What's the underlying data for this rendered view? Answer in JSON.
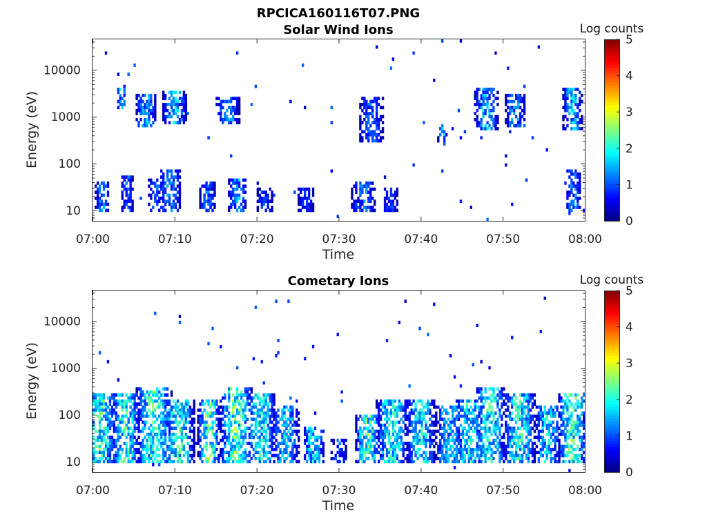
{
  "page": {
    "title": "RPCICA160116T07.PNG"
  },
  "chart_data": [
    {
      "type": "heatmap",
      "title": "Solar Wind Ions",
      "xlabel": "Time",
      "ylabel": "Energy (eV)",
      "x_range": [
        "07:00",
        "08:00"
      ],
      "x_ticks": [
        "07:00",
        "07:10",
        "07:20",
        "07:30",
        "07:40",
        "07:50",
        "08:00"
      ],
      "y_scale": "log",
      "y_range": [
        6,
        45000
      ],
      "y_ticks": [
        "10",
        "100",
        "1000",
        "10000"
      ],
      "colorbar": {
        "label": "Log counts",
        "range": [
          0,
          5
        ],
        "ticks": [
          "0",
          "1",
          "2",
          "3",
          "4",
          "5"
        ],
        "colormap": "jet"
      },
      "seed": 11,
      "activity": [
        {
          "center_min": 1.2,
          "width_min": 0.9,
          "band_eV": [
            10,
            40
          ],
          "level": 1.4
        },
        {
          "center_min": 3.5,
          "width_min": 0.6,
          "band_eV": [
            1500,
            4000
          ],
          "level": 2.0
        },
        {
          "center_min": 4.2,
          "width_min": 0.8,
          "band_eV": [
            10,
            60
          ],
          "level": 1.2
        },
        {
          "center_min": 6.5,
          "width_min": 1.3,
          "band_eV": [
            600,
            3000
          ],
          "level": 1.6
        },
        {
          "center_min": 7.8,
          "width_min": 1.0,
          "band_eV": [
            10,
            50
          ],
          "level": 1.2
        },
        {
          "center_min": 9.5,
          "width_min": 1.3,
          "band_eV": [
            10,
            80
          ],
          "level": 1.5
        },
        {
          "center_min": 10.0,
          "width_min": 1.5,
          "band_eV": [
            700,
            3500
          ],
          "level": 1.8
        },
        {
          "center_min": 14.0,
          "width_min": 1.0,
          "band_eV": [
            10,
            40
          ],
          "level": 1.3
        },
        {
          "center_min": 16.5,
          "width_min": 1.5,
          "band_eV": [
            700,
            2500
          ],
          "level": 1.5
        },
        {
          "center_min": 17.7,
          "width_min": 1.2,
          "band_eV": [
            10,
            50
          ],
          "level": 1.6
        },
        {
          "center_min": 21.0,
          "width_min": 1.0,
          "band_eV": [
            10,
            30
          ],
          "level": 1.1
        },
        {
          "center_min": 26.0,
          "width_min": 1.0,
          "band_eV": [
            10,
            30
          ],
          "level": 1.0
        },
        {
          "center_min": 33.0,
          "width_min": 1.5,
          "band_eV": [
            10,
            40
          ],
          "level": 1.3
        },
        {
          "center_min": 34.0,
          "width_min": 1.5,
          "band_eV": [
            300,
            2500
          ],
          "level": 1.2
        },
        {
          "center_min": 36.3,
          "width_min": 1.0,
          "band_eV": [
            10,
            30
          ],
          "level": 1.1
        },
        {
          "center_min": 42.7,
          "width_min": 0.6,
          "band_eV": [
            250,
            700
          ],
          "level": 1.6
        },
        {
          "center_min": 48.0,
          "width_min": 1.5,
          "band_eV": [
            500,
            4000
          ],
          "level": 1.7
        },
        {
          "center_min": 51.5,
          "width_min": 1.3,
          "band_eV": [
            600,
            3000
          ],
          "level": 1.5
        },
        {
          "center_min": 58.5,
          "width_min": 1.2,
          "band_eV": [
            500,
            4000
          ],
          "level": 1.7
        },
        {
          "center_min": 58.6,
          "width_min": 1.0,
          "band_eV": [
            10,
            70
          ],
          "level": 1.4
        }
      ]
    },
    {
      "type": "heatmap",
      "title": "Cometary Ions",
      "xlabel": "Time",
      "ylabel": "Energy (eV)",
      "x_range": [
        "07:00",
        "08:00"
      ],
      "x_ticks": [
        "07:00",
        "07:10",
        "07:20",
        "07:30",
        "07:40",
        "07:50",
        "08:00"
      ],
      "y_scale": "log",
      "y_range": [
        6,
        45000
      ],
      "y_ticks": [
        "10",
        "100",
        "1000",
        "10000"
      ],
      "colorbar": {
        "label": "Log counts",
        "range": [
          0,
          5
        ],
        "ticks": [
          "0",
          "1",
          "2",
          "3",
          "4",
          "5"
        ],
        "colormap": "jet"
      },
      "seed": 29,
      "activity": [
        {
          "center_min": 1.0,
          "width_min": 1.8,
          "band_eV": [
            10,
            300
          ],
          "level": 2.4
        },
        {
          "center_min": 4.0,
          "width_min": 1.8,
          "band_eV": [
            10,
            300
          ],
          "level": 2.3
        },
        {
          "center_min": 7.5,
          "width_min": 2.2,
          "band_eV": [
            10,
            400
          ],
          "level": 2.4
        },
        {
          "center_min": 10.5,
          "width_min": 2.0,
          "band_eV": [
            10,
            200
          ],
          "level": 2.3
        },
        {
          "center_min": 14.2,
          "width_min": 1.4,
          "band_eV": [
            10,
            200
          ],
          "level": 2.5
        },
        {
          "center_min": 17.5,
          "width_min": 2.0,
          "band_eV": [
            10,
            400
          ],
          "level": 2.6
        },
        {
          "center_min": 20.5,
          "width_min": 1.8,
          "band_eV": [
            10,
            300
          ],
          "level": 2.2
        },
        {
          "center_min": 23.5,
          "width_min": 1.8,
          "band_eV": [
            10,
            150
          ],
          "level": 1.8
        },
        {
          "center_min": 27.0,
          "width_min": 1.4,
          "band_eV": [
            10,
            60
          ],
          "level": 2.0
        },
        {
          "center_min": 30.0,
          "width_min": 1.0,
          "band_eV": [
            10,
            30
          ],
          "level": 1.2
        },
        {
          "center_min": 33.5,
          "width_min": 1.5,
          "band_eV": [
            10,
            100
          ],
          "level": 2.5
        },
        {
          "center_min": 36.5,
          "width_min": 2.0,
          "band_eV": [
            10,
            200
          ],
          "level": 2.2
        },
        {
          "center_min": 40.0,
          "width_min": 1.8,
          "band_eV": [
            10,
            200
          ],
          "level": 2.1
        },
        {
          "center_min": 43.5,
          "width_min": 1.8,
          "band_eV": [
            10,
            150
          ],
          "level": 1.8
        },
        {
          "center_min": 46.0,
          "width_min": 1.8,
          "band_eV": [
            10,
            200
          ],
          "level": 2.2
        },
        {
          "center_min": 48.5,
          "width_min": 1.8,
          "band_eV": [
            10,
            400
          ],
          "level": 2.3
        },
        {
          "center_min": 52.0,
          "width_min": 2.0,
          "band_eV": [
            10,
            300
          ],
          "level": 2.2
        },
        {
          "center_min": 55.5,
          "width_min": 1.6,
          "band_eV": [
            10,
            150
          ],
          "level": 2.0
        },
        {
          "center_min": 58.5,
          "width_min": 1.8,
          "band_eV": [
            10,
            300
          ],
          "level": 2.5
        }
      ]
    }
  ]
}
